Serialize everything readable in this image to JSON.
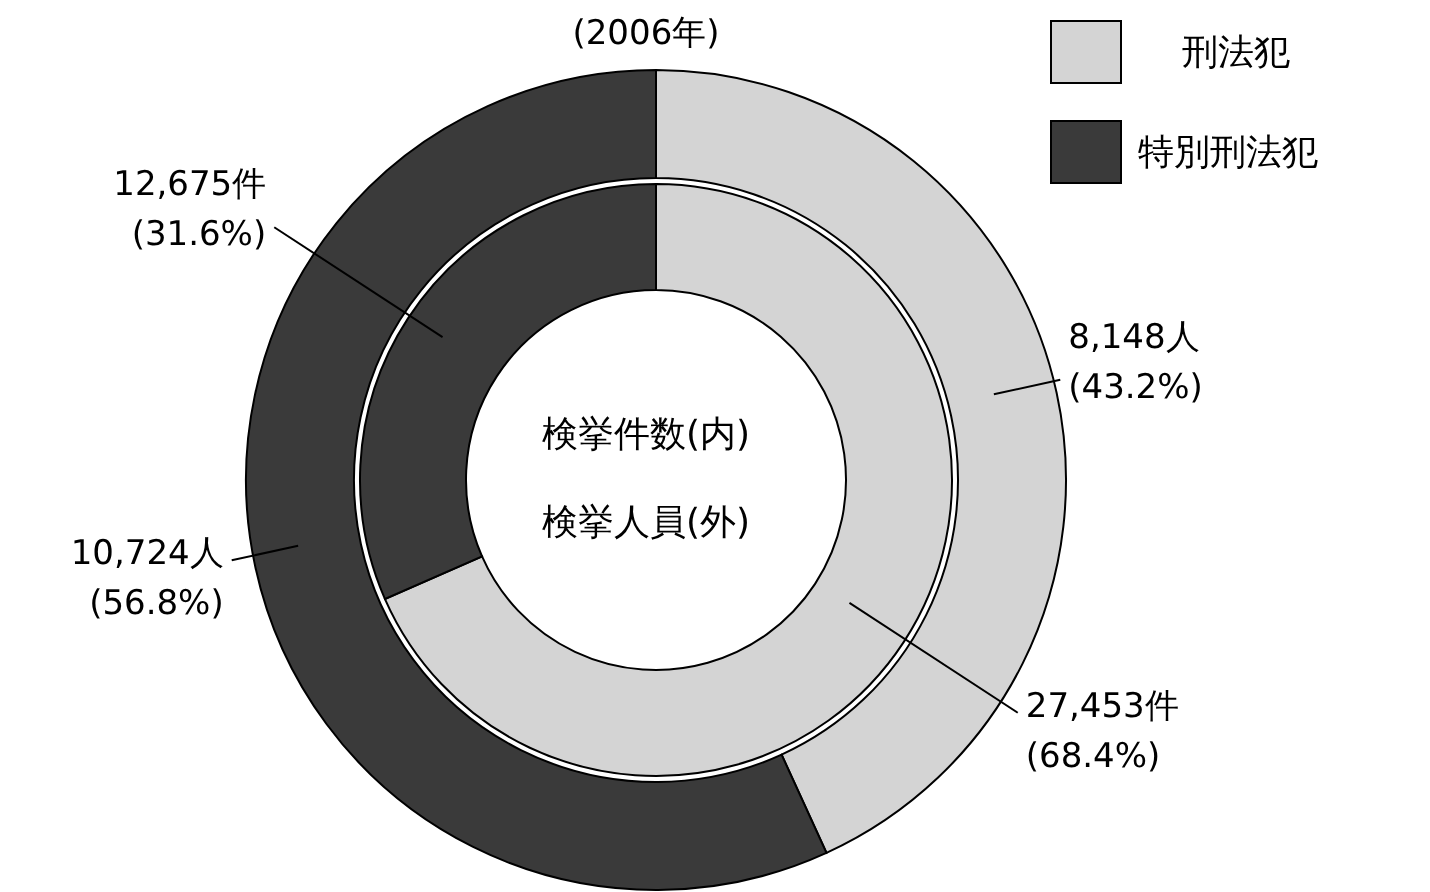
{
  "chart_data": {
    "type": "donut",
    "title": "(2006年)",
    "categories": [
      "刑法犯",
      "特別刑法犯"
    ],
    "colors": [
      "#d4d4d4",
      "#3a3a3a"
    ],
    "series": [
      {
        "values": [
          27453,
          12675
        ],
        "value_labels": [
          "27,453件 (68.4%)",
          "12,675件 (31.6%)"
        ]
      },
      {
        "values": [
          8148,
          10724
        ],
        "value_labels": [
          "8,148人 (43.2%)",
          "10,724人 (56.8%)"
        ]
      }
    ],
    "annotations": [
      "検挙件数(内)",
      "検挙人員(外)"
    ],
    "legend": "top right"
  }
}
